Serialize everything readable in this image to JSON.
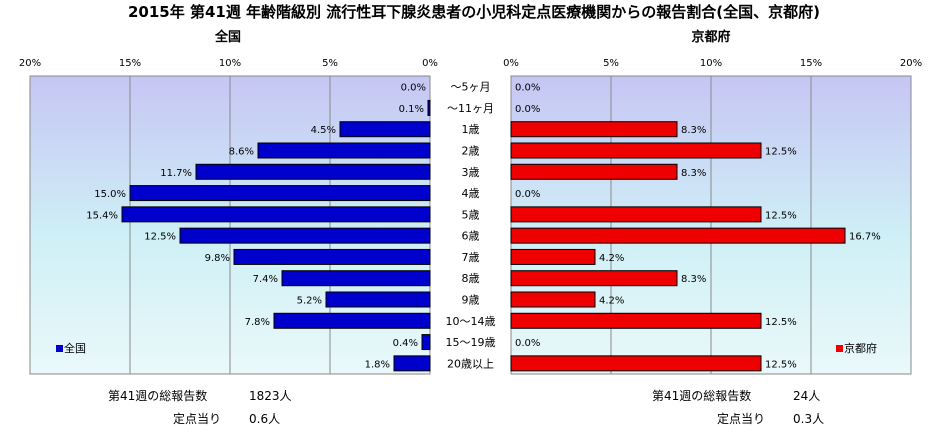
{
  "chart_data": {
    "type": "bar",
    "title": "2015年 第41週 年齢階級別 流行性耳下腺炎患者の小児科定点医療機関からの報告割合(全国、京都府)",
    "categories": [
      "～5ヶ月",
      "～11ヶ月",
      "1歳",
      "2歳",
      "3歳",
      "4歳",
      "5歳",
      "6歳",
      "7歳",
      "8歳",
      "9歳",
      "10～14歳",
      "15～19歳",
      "20歳以上"
    ],
    "xlim": [
      0,
      20
    ],
    "xticks": [
      "0%",
      "5%",
      "10%",
      "15%",
      "20%"
    ],
    "grid": true,
    "series": [
      {
        "name": "全国",
        "panel_title": "全国",
        "direction": "left",
        "color": "#0000CC",
        "legend_position": "bottom-left",
        "values": [
          0.0,
          0.1,
          4.5,
          8.6,
          11.7,
          15.0,
          15.4,
          12.5,
          9.8,
          7.4,
          5.2,
          7.8,
          0.4,
          1.8
        ],
        "value_labels": [
          "0.0%",
          "0.1%",
          "4.5%",
          "8.6%",
          "11.7%",
          "15.0%",
          "15.4%",
          "12.5%",
          "9.8%",
          "7.4%",
          "5.2%",
          "7.8%",
          "0.4%",
          "1.8%"
        ]
      },
      {
        "name": "京都府",
        "panel_title": "京都府",
        "direction": "right",
        "color": "#EE0000",
        "legend_position": "bottom-right",
        "values": [
          0.0,
          0.0,
          8.3,
          12.5,
          8.3,
          0.0,
          12.5,
          16.7,
          4.2,
          8.3,
          4.2,
          12.5,
          0.0,
          12.5
        ],
        "value_labels": [
          "0.0%",
          "0.0%",
          "8.3%",
          "12.5%",
          "8.3%",
          "0.0%",
          "12.5%",
          "16.7%",
          "4.2%",
          "8.3%",
          "4.2%",
          "12.5%",
          "0.0%",
          "12.5%"
        ]
      }
    ]
  },
  "footer": {
    "left": {
      "total_label": "第41週の総報告数",
      "total_value": "1823人",
      "per_site_label": "定点当り",
      "per_site_value": "0.6人"
    },
    "right": {
      "total_label": "第41週の総報告数",
      "total_value": "24人",
      "per_site_label": "定点当り",
      "per_site_value": "0.3人"
    }
  }
}
